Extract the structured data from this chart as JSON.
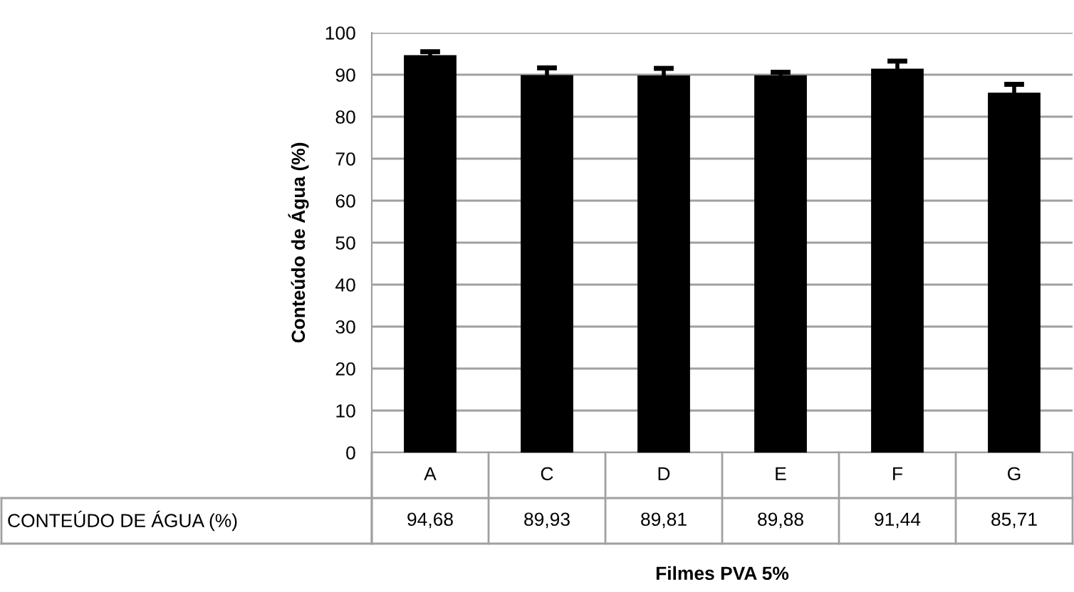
{
  "chart_data": {
    "type": "bar",
    "xlabel": "Filmes PVA 5%",
    "ylabel": "Conteúdo de Água (%)",
    "categories": [
      "A",
      "C",
      "D",
      "E",
      "F",
      "G"
    ],
    "series": [
      {
        "name": "CONTEÚDO DE ÁGUA (%)",
        "color": "#000000",
        "values": [
          94.68,
          89.93,
          89.81,
          89.88,
          91.44,
          85.71
        ],
        "errors": [
          0.8,
          1.7,
          1.7,
          0.7,
          1.8,
          2.0
        ],
        "value_labels": [
          "94,68",
          "89,93",
          "89,81",
          "89,88",
          "91,44",
          "85,71"
        ]
      }
    ],
    "ylim": [
      0,
      100
    ],
    "yticks": [
      0,
      10,
      20,
      30,
      40,
      50,
      60,
      70,
      80,
      90,
      100
    ],
    "grid": "y",
    "legend": false
  }
}
